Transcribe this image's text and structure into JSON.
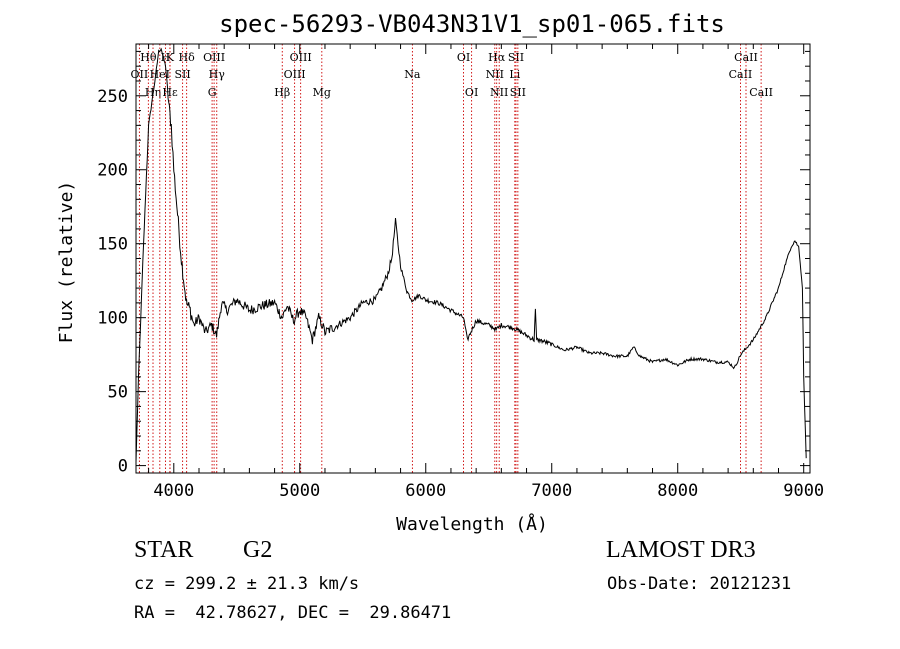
{
  "chart_data": {
    "type": "line",
    "title": "spec-56293-VB043N31V1_sp01-065.fits",
    "xlabel": "Wavelength (Å)",
    "ylabel": "Flux (relative)",
    "xlim": [
      3700,
      9050
    ],
    "ylim": [
      -5,
      285
    ],
    "x_ticks": [
      4000,
      5000,
      6000,
      7000,
      8000,
      9000
    ],
    "x_tick_labels": [
      "4000",
      "5000",
      "6000",
      "7000",
      "8000",
      "9000"
    ],
    "y_ticks": [
      0,
      50,
      100,
      150,
      200,
      250
    ],
    "y_tick_labels": [
      "0",
      "50",
      "100",
      "150",
      "200",
      "250"
    ],
    "series": [
      {
        "name": "flux",
        "color": "#000000",
        "x": [
          3700,
          3720,
          3760,
          3800,
          3850,
          3880,
          3900,
          3920,
          3935,
          3950,
          3965,
          3980,
          4000,
          4030,
          4060,
          4100,
          4130,
          4160,
          4200,
          4250,
          4300,
          4340,
          4380,
          4420,
          4500,
          4600,
          4700,
          4800,
          4860,
          4900,
          4950,
          5000,
          5050,
          5100,
          5150,
          5180,
          5200,
          5300,
          5400,
          5500,
          5600,
          5650,
          5700,
          5730,
          5760,
          5780,
          5800,
          5850,
          5890,
          5950,
          6000,
          6100,
          6200,
          6300,
          6330,
          6400,
          6500,
          6560,
          6600,
          6700,
          6800,
          6860,
          6870,
          6880,
          6900,
          7000,
          7100,
          7200,
          7300,
          7400,
          7500,
          7600,
          7650,
          7700,
          7800,
          7900,
          8000,
          8100,
          8200,
          8300,
          8400,
          8450,
          8500,
          8550,
          8600,
          8700,
          8800,
          8850,
          8900,
          8930,
          8960,
          8990,
          9000,
          9020
        ],
        "y": [
          2,
          60,
          150,
          230,
          260,
          280,
          282,
          275,
          270,
          255,
          240,
          230,
          200,
          170,
          140,
          110,
          105,
          95,
          100,
          90,
          95,
          88,
          110,
          105,
          112,
          105,
          108,
          110,
          100,
          108,
          98,
          105,
          100,
          85,
          100,
          95,
          90,
          95,
          100,
          110,
          112,
          120,
          130,
          140,
          165,
          150,
          135,
          118,
          112,
          115,
          112,
          110,
          105,
          100,
          85,
          98,
          95,
          92,
          95,
          93,
          88,
          85,
          105,
          85,
          85,
          82,
          78,
          80,
          76,
          76,
          74,
          74,
          80,
          74,
          70,
          72,
          68,
          72,
          72,
          70,
          70,
          66,
          75,
          80,
          85,
          100,
          120,
          135,
          148,
          152,
          148,
          120,
          60,
          5
        ]
      }
    ],
    "lines": [
      {
        "label": "OII",
        "x": 3727,
        "row": 1
      },
      {
        "label": "Hθ",
        "x": 3798,
        "row": 0
      },
      {
        "label": "Hη",
        "x": 3835,
        "row": 2
      },
      {
        "label": "HeI",
        "x": 3889,
        "row": 1
      },
      {
        "label": "H",
        "x": 3934,
        "row": 0
      },
      {
        "label": "K",
        "x": 3969,
        "row": 0
      },
      {
        "label": "Hε",
        "x": 3970,
        "row": 2
      },
      {
        "label": "SII",
        "x": 4070,
        "row": 1
      },
      {
        "label": "Hδ",
        "x": 4102,
        "row": 0
      },
      {
        "label": "OIII",
        "x": 4320,
        "row": 0
      },
      {
        "label": "Hγ",
        "x": 4341,
        "row": 1
      },
      {
        "label": "G",
        "x": 4304,
        "row": 2
      },
      {
        "label": "Hβ",
        "x": 4861,
        "row": 2
      },
      {
        "label": "OIII",
        "x": 4959,
        "row": 1
      },
      {
        "label": "OIII",
        "x": 5007,
        "row": 0
      },
      {
        "label": "Mg",
        "x": 5175,
        "row": 2
      },
      {
        "label": "Na",
        "x": 5894,
        "row": 1
      },
      {
        "label": "OI",
        "x": 6300,
        "row": 0
      },
      {
        "label": "OI",
        "x": 6364,
        "row": 2
      },
      {
        "label": "NII",
        "x": 6548,
        "row": 1
      },
      {
        "label": "Hα",
        "x": 6563,
        "row": 0
      },
      {
        "label": "NII",
        "x": 6583,
        "row": 2
      },
      {
        "label": "Li",
        "x": 6707,
        "row": 1
      },
      {
        "label": "SII",
        "x": 6716,
        "row": 0
      },
      {
        "label": "SII",
        "x": 6731,
        "row": 2
      },
      {
        "label": "CaII",
        "x": 8498,
        "row": 1
      },
      {
        "label": "CaII",
        "x": 8542,
        "row": 0
      },
      {
        "label": "CaII",
        "x": 8662,
        "row": 2
      }
    ]
  },
  "info": {
    "type": "STAR",
    "subclass": "G2",
    "survey": "LAMOST DR3",
    "cz": "cz = 299.2 ± 21.3 km/s",
    "obs_date": "Obs-Date: 20121231",
    "radec": "RA =  42.78627, DEC =  29.86471"
  },
  "colors": {
    "line_marker": "#cc0000",
    "spectrum": "#000000"
  }
}
